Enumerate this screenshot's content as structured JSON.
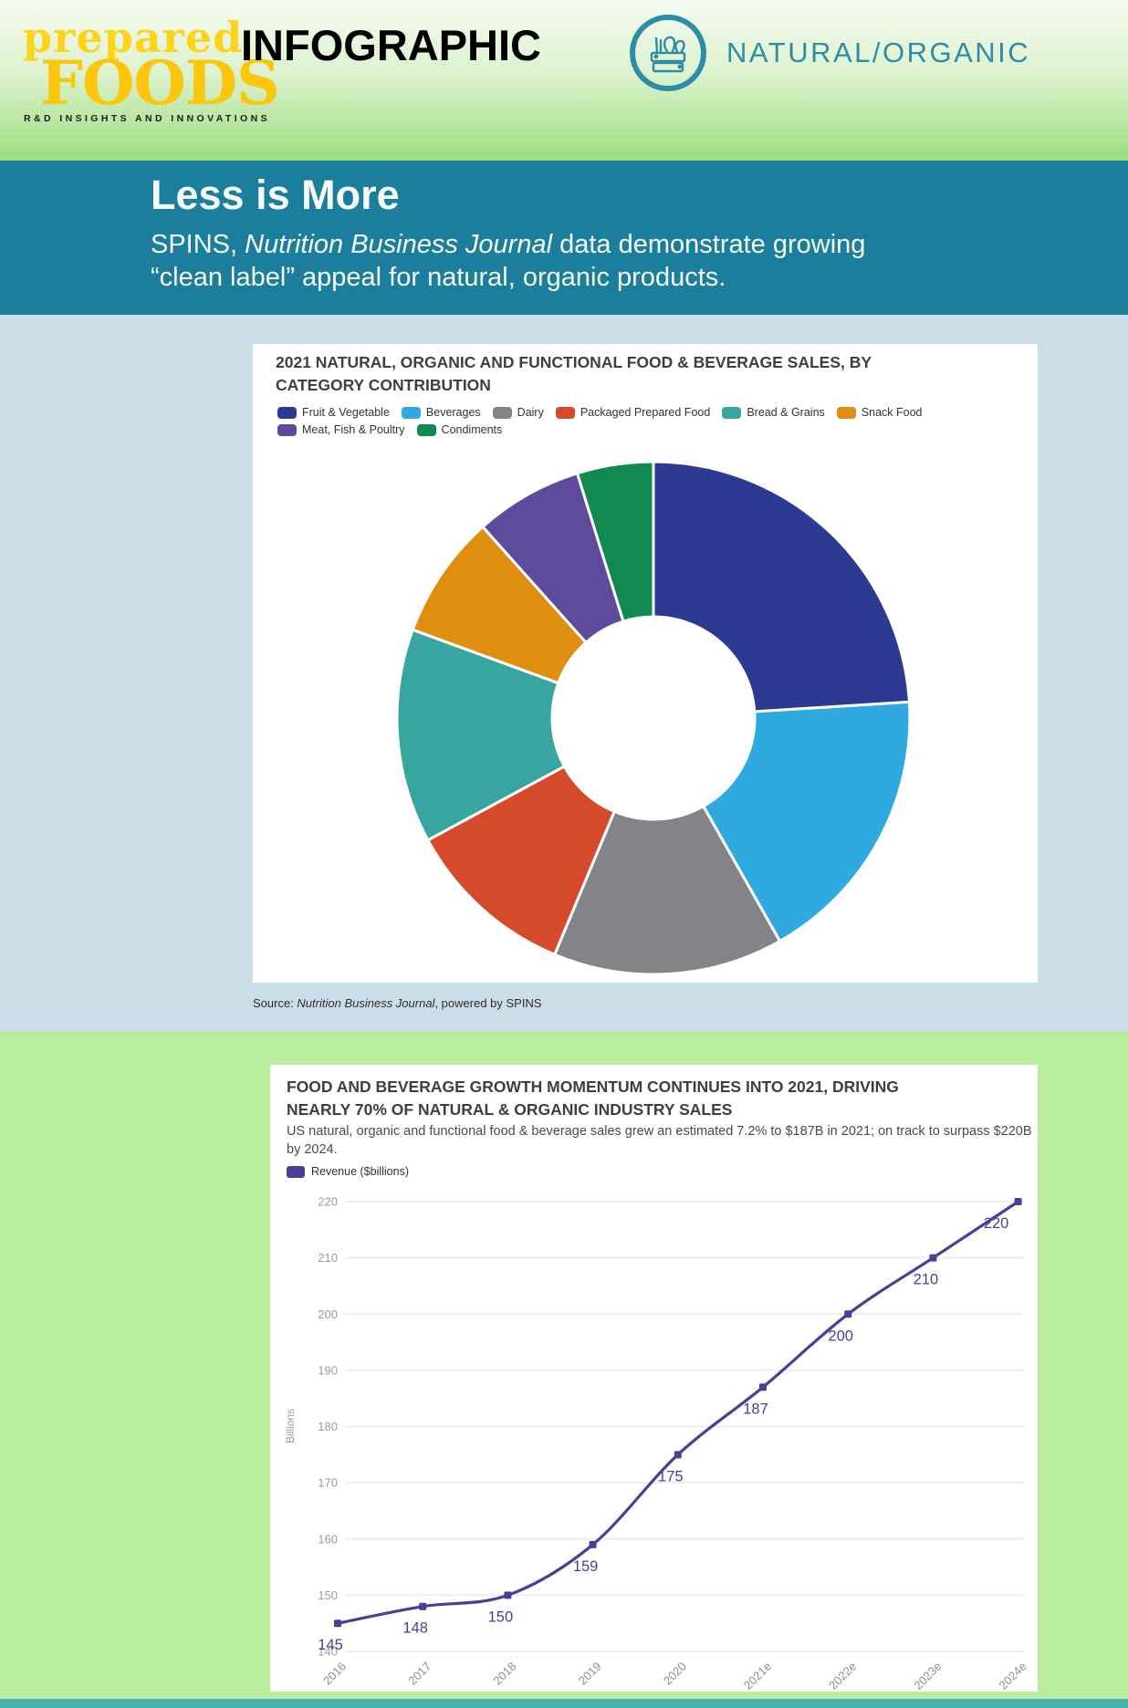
{
  "header": {
    "logo_line1": "prepared",
    "logo_line2": "FOODS",
    "logo_tagline": "R&D INSIGHTS AND INNOVATIONS",
    "infographic_label": "INFOGRAPHIC",
    "badge_text": "NATURAL/ORGANIC",
    "badge_color": "#2d8ca6"
  },
  "banner": {
    "title": "Less is More",
    "subtitle_pre": "SPINS, ",
    "subtitle_italic": "Nutrition Business Journal",
    "subtitle_post": " data demonstrate growing “clean label” appeal for natural, organic products.",
    "background": "#1b7e9d"
  },
  "pie_section": {
    "card_title": "2021 NATURAL, ORGANIC AND FUNCTIONAL FOOD & BEVERAGE SALES, BY CATEGORY CONTRIBUTION",
    "source_pre": "Source: ",
    "source_italic": "Nutrition Business Journal",
    "source_post": ", powered by SPINS"
  },
  "line_section": {
    "card_title_line1": "FOOD AND BEVERAGE GROWTH MOMENTUM CONTINUES INTO 2021, DRIVING",
    "card_title_line2": "NEARLY 70% OF NATURAL & ORGANIC INDUSTRY SALES",
    "subtitle": "US natural, organic and functional food & beverage sales grew an estimated 7.2% to $187B in 2021; on track to surpass $220B by 2024.",
    "legend_label": "Revenue ($billions)"
  },
  "chart_data": [
    {
      "type": "pie",
      "donut": true,
      "title": "2021 NATURAL, ORGANIC AND FUNCTIONAL FOOD & BEVERAGE SALES, BY CATEGORY CONTRIBUTION",
      "labels": [
        "Fruit & Vegetable",
        "Beverages",
        "Dairy",
        "Packaged Prepared Food",
        "Bread & Grains",
        "Snack Food",
        "Meat, Fish & Poultry",
        "Condiments"
      ],
      "values": [
        24.0,
        17.8,
        14.5,
        10.8,
        13.5,
        7.8,
        6.8,
        4.8
      ],
      "colors": [
        "#2d3a92",
        "#2fa9e0",
        "#828487",
        "#d64a2c",
        "#38a5a0",
        "#df8f10",
        "#5f4b9c",
        "#108a51"
      ],
      "start_angle_deg": 0,
      "legend_position": "top",
      "note": "values are percent shares estimated from segment angles; no numeric labels shown in chart"
    },
    {
      "type": "line",
      "title": "FOOD AND BEVERAGE GROWTH MOMENTUM CONTINUES INTO 2021, DRIVING NEARLY 70% OF NATURAL & ORGANIC INDUSTRY SALES",
      "x": [
        "2016",
        "2017",
        "2018",
        "2019",
        "2020",
        "2021e",
        "2022e",
        "2023e",
        "2024e"
      ],
      "series": [
        {
          "name": "Revenue ($billions)",
          "values": [
            145,
            148,
            150,
            159,
            175,
            187,
            200,
            210,
            220
          ]
        }
      ],
      "ylabel": "Billions",
      "ylim": [
        140,
        220
      ],
      "ytick_step": 10,
      "grid": true,
      "line_color": "#4d3d94",
      "label_color": "#4d3d94",
      "tick_color": "#9b9b9b",
      "grid_color": "#efedf2",
      "legend_position": "top"
    }
  ]
}
